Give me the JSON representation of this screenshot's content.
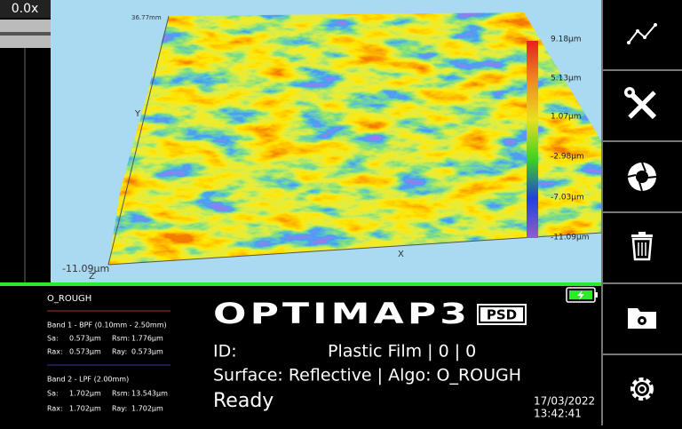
{
  "zoom": "0.0x",
  "plot": {
    "top_label": "36.77mm",
    "y_axis": "Y",
    "x_axis": "X",
    "z_axis": "Z",
    "bottom_label": "-11.09µm",
    "scale_labels": [
      "9.18µm",
      "5.13µm",
      "1.07µm",
      "-2.98µm",
      "-7.03µm",
      "-11.09µm"
    ]
  },
  "results": {
    "algo": "O_ROUGH",
    "bands": [
      {
        "title": "Band 1 - BPF (0.10mm - 2.50mm)",
        "rows": [
          [
            {
              "label": "Sa:",
              "value": "0.573µm"
            },
            {
              "label": "Rsm:",
              "value": "1.776µm"
            }
          ],
          [
            {
              "label": "Rax:",
              "value": "0.573µm"
            },
            {
              "label": "Ray:",
              "value": "0.573µm"
            }
          ]
        ]
      },
      {
        "title": "Band 2 - LPF (2.00mm)",
        "rows": [
          [
            {
              "label": "Sa:",
              "value": "1.702µm"
            },
            {
              "label": "Rsm:",
              "value": "13.543µm"
            }
          ],
          [
            {
              "label": "Rax:",
              "value": "1.702µm"
            },
            {
              "label": "Ray:",
              "value": "1.702µm"
            }
          ]
        ]
      }
    ]
  },
  "logo": {
    "name": "OPTIMAP3",
    "badge": "PSD"
  },
  "status": {
    "id_label": "ID:",
    "id_value": "Plastic Film | 0 | 0",
    "surface": "Surface: Reflective | Algo: O_ROUGH",
    "state": "Ready",
    "date": "17/03/2022",
    "time": "13:42:41"
  }
}
